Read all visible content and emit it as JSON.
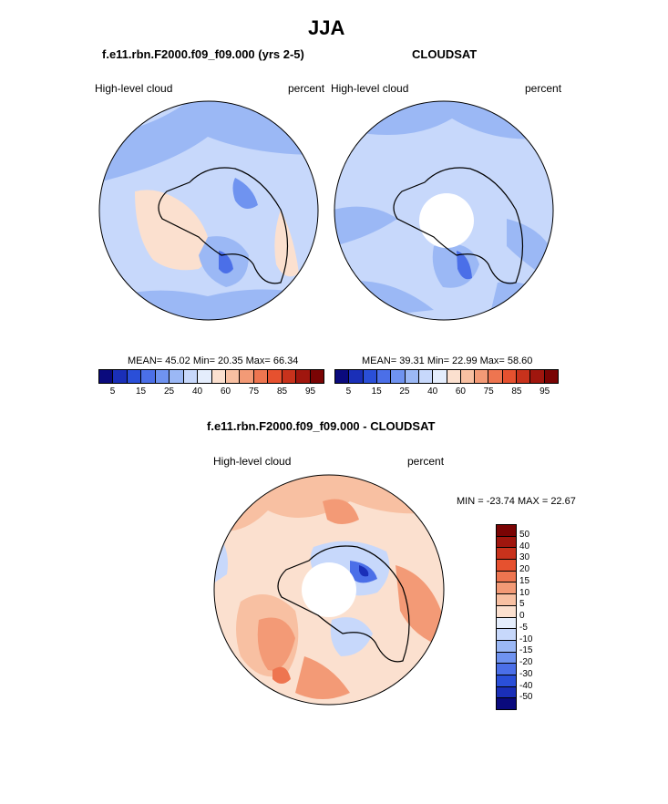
{
  "figure": {
    "title": "JJA",
    "top_left_subtitle": "f.e11.rbn.F2000.f09_f09.000 (yrs 2-5)",
    "top_right_subtitle": "CLOUDSAT",
    "bottom_subtitle": "f.e11.rbn.F2000.f09_f09.000 - CLOUDSAT"
  },
  "panels": {
    "model": {
      "variable": "High-level cloud",
      "units": "percent",
      "stats": "MEAN=  45.02  Min=  20.35  Max=  66.34"
    },
    "obs": {
      "variable": "High-level cloud",
      "units": "percent",
      "stats": "MEAN=  39.31  Min=  22.99  Max=  58.60"
    },
    "diff": {
      "variable": "High-level cloud",
      "units": "percent",
      "stats": "MIN = -23.74 MAX =  22.67"
    }
  },
  "colorbar_abs": {
    "ticks": [
      "5",
      "15",
      "25",
      "40",
      "60",
      "75",
      "85",
      "95"
    ],
    "colors": [
      "#0a0a7d",
      "#1a2fb8",
      "#2a4fd8",
      "#4b6fe8",
      "#6f93f0",
      "#9bb8f5",
      "#c7d8fb",
      "#e4edfc",
      "#fbe0cf",
      "#f8c0a2",
      "#f39a76",
      "#ee7550",
      "#e6512f",
      "#c8321c",
      "#a0160e",
      "#7a0404"
    ]
  },
  "colorbar_diff": {
    "ticks": [
      "50",
      "40",
      "30",
      "20",
      "15",
      "10",
      "5",
      "0",
      "-5",
      "-10",
      "-15",
      "-20",
      "-30",
      "-40",
      "-50"
    ],
    "colors": [
      "#7a0404",
      "#a0160e",
      "#c8321c",
      "#e6512f",
      "#ee7550",
      "#f39a76",
      "#f8c0a2",
      "#fbe0cf",
      "#e4edfc",
      "#c7d8fb",
      "#9bb8f5",
      "#6f93f0",
      "#4b6fe8",
      "#2a4fd8",
      "#1a2fb8",
      "#0a0a7d"
    ]
  }
}
